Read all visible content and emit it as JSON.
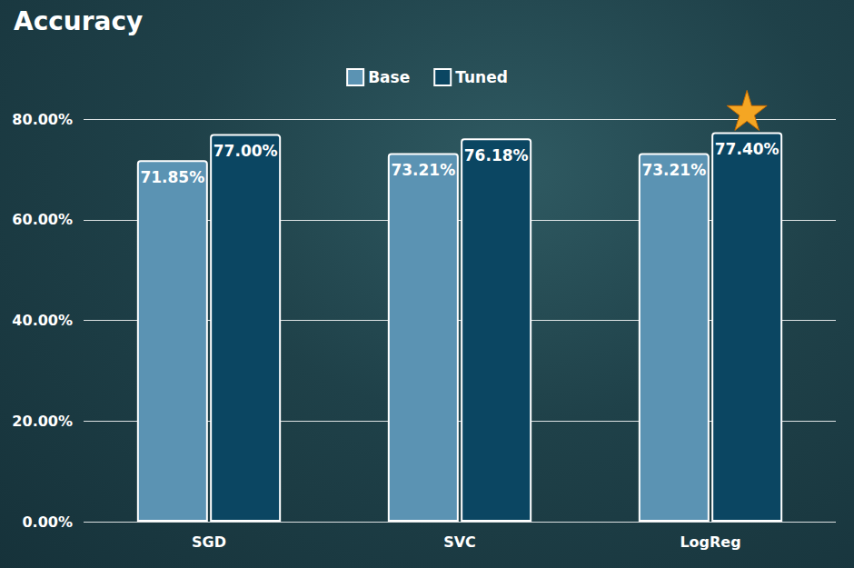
{
  "chart_data": {
    "type": "bar",
    "title": "Accuracy",
    "categories": [
      "SGD",
      "SVC",
      "LogReg"
    ],
    "series": [
      {
        "name": "Base",
        "color": "#5b93b3",
        "values": [
          71.85,
          73.21,
          73.21
        ],
        "value_labels": [
          "71.85%",
          "73.21%",
          "73.21%"
        ]
      },
      {
        "name": "Tuned",
        "color": "#0b4662",
        "values": [
          77.0,
          76.18,
          77.4
        ],
        "value_labels": [
          "77.00%",
          "76.18%",
          "77.40%"
        ]
      }
    ],
    "ylim": [
      0,
      80
    ],
    "yticks": [
      {
        "value": 0,
        "label": "0.00%"
      },
      {
        "value": 20,
        "label": "20.00%"
      },
      {
        "value": 40,
        "label": "40.00%"
      },
      {
        "value": 60,
        "label": "60.00%"
      },
      {
        "value": 80,
        "label": "80.00%"
      }
    ],
    "grid": true,
    "legend": "top",
    "data_labels": true
  }
}
